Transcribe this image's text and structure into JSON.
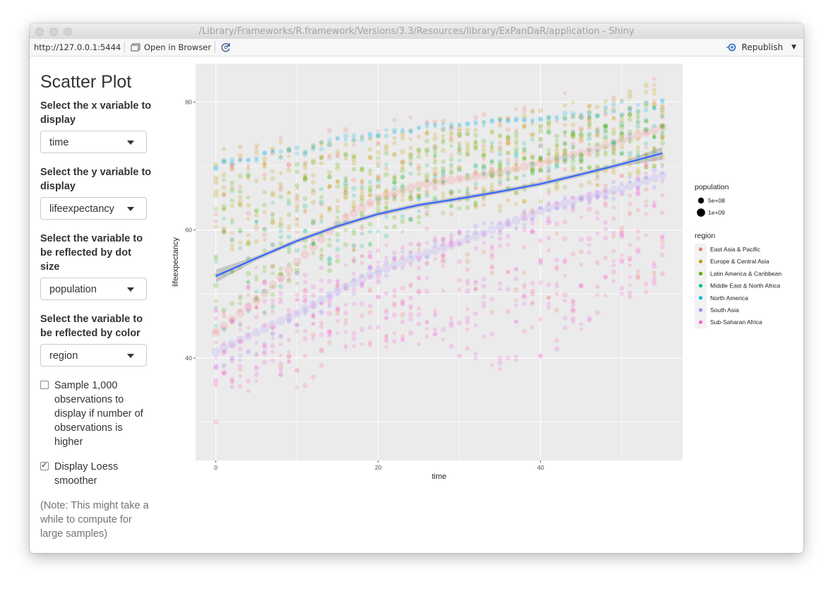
{
  "window": {
    "title": "/Library/Frameworks/R.framework/Versions/3.3/Resources/library/ExPanDaR/application - Shiny"
  },
  "toolbar": {
    "url": "http://127.0.0.1:5444",
    "open_in_browser": "Open in Browser",
    "republish": "Republish"
  },
  "sidebar": {
    "title": "Scatter Plot",
    "x_label": "Select the x variable to display",
    "x_value": "time",
    "y_label": "Select the y variable to display",
    "y_value": "lifeexpectancy",
    "size_label": "Select the variable to be reflected by dot size",
    "size_value": "population",
    "color_label": "Select the variable to be reflected by color",
    "color_value": "region",
    "sample_label": "Sample 1,000 observations to display if number of observations is higher",
    "sample_checked": false,
    "loess_label": "Display Loess smoother",
    "loess_checked": true,
    "note": "(Note: This might take a while to compute for large samples)"
  },
  "icons": {
    "open_in_browser": "browser-window-icon",
    "refresh": "refresh-icon",
    "republish": "publish-icon",
    "dropdown": "chevron-down-icon"
  },
  "chart_data": {
    "type": "scatter",
    "title": "",
    "xlabel": "time",
    "ylabel": "lifeexpectancy",
    "xlim": [
      -2.5,
      57.5
    ],
    "ylim": [
      24,
      86
    ],
    "x_ticks": [
      0,
      20,
      40
    ],
    "y_ticks": [
      40,
      60,
      80
    ],
    "grid": true,
    "panel_color": "#ebebeb",
    "legend_placement": "right",
    "size_legend": {
      "title": "population",
      "entries": [
        "5e+08",
        "1e+09"
      ]
    },
    "color_legend": {
      "title": "region",
      "entries": [
        {
          "name": "East Asia & Pacific",
          "color": "#F8766D"
        },
        {
          "name": "Europe & Central Asia",
          "color": "#C49A00"
        },
        {
          "name": "Latin America & Caribbean",
          "color": "#53B400"
        },
        {
          "name": "Middle East & North Africa",
          "color": "#00C094"
        },
        {
          "name": "North America",
          "color": "#00B6EB"
        },
        {
          "name": "South Asia",
          "color": "#A58AFF"
        },
        {
          "name": "Sub-Saharan Africa",
          "color": "#FB61D7"
        }
      ]
    },
    "loess": {
      "color": "#3366FF",
      "x": [
        0,
        5,
        10,
        15,
        20,
        25,
        30,
        35,
        40,
        45,
        50,
        55
      ],
      "y": [
        52.8,
        55.6,
        58.3,
        60.6,
        62.5,
        63.9,
        64.9,
        66.0,
        67.2,
        68.7,
        70.3,
        72.0
      ]
    },
    "series": [
      {
        "region": "East Asia & Pacific",
        "x": [
          0,
          5,
          10,
          15,
          20,
          25,
          30,
          35,
          40,
          45,
          50,
          55
        ],
        "y_low": [
          30,
          33,
          35,
          38,
          40,
          42,
          44,
          46,
          47,
          48,
          49,
          50
        ],
        "y_high": [
          73,
          74,
          75,
          76,
          77,
          78,
          79,
          80,
          81,
          82,
          83,
          84
        ],
        "large_y": [
          44,
          49,
          55,
          61,
          65,
          67,
          68,
          69,
          70.5,
          72,
          74,
          76
        ]
      },
      {
        "region": "Europe & Central Asia",
        "x": [
          0,
          5,
          10,
          15,
          20,
          25,
          30,
          35,
          40,
          45,
          50,
          55
        ],
        "y_low": [
          55,
          58,
          60,
          63,
          64,
          65,
          64,
          63,
          64,
          66,
          68,
          70
        ],
        "y_high": [
          73,
          73.5,
          74,
          74.5,
          75,
          76,
          77,
          78,
          79,
          80.5,
          82,
          83
        ]
      },
      {
        "region": "Latin America & Caribbean",
        "x": [
          0,
          5,
          10,
          15,
          20,
          25,
          30,
          35,
          40,
          45,
          50,
          55
        ],
        "y_low": [
          45,
          48,
          51,
          54,
          57,
          60,
          63,
          65,
          67,
          68,
          69,
          70
        ],
        "y_high": [
          68,
          69.5,
          71,
          72,
          73,
          74,
          75,
          76,
          77,
          78,
          79,
          80
        ]
      },
      {
        "region": "Middle East & North Africa",
        "x": [
          0,
          5,
          10,
          15,
          20,
          25,
          30,
          35,
          40,
          45,
          50,
          55
        ],
        "y_low": [
          42,
          46,
          50,
          54,
          58,
          62,
          65,
          67,
          69,
          70,
          71,
          72
        ],
        "y_high": [
          62,
          64,
          66,
          68,
          70,
          72,
          73,
          74,
          75,
          76,
          77,
          78
        ]
      },
      {
        "region": "North America",
        "x": [
          0,
          5,
          10,
          15,
          20,
          25,
          30,
          35,
          40,
          45,
          50,
          55
        ],
        "y_low": [
          69.5,
          70.5,
          71.5,
          73,
          74.5,
          75.5,
          76,
          76.5,
          77,
          77.5,
          78,
          79
        ],
        "y_high": [
          71,
          72,
          73,
          74.5,
          75.5,
          76.5,
          77,
          77.5,
          78,
          79,
          80,
          81
        ]
      },
      {
        "region": "South Asia",
        "x": [
          0,
          5,
          10,
          15,
          20,
          25,
          30,
          35,
          40,
          45,
          50,
          55
        ],
        "y_low": [
          36,
          40,
          44,
          48,
          52,
          55,
          57,
          59,
          61,
          63,
          65,
          67
        ],
        "large_y": [
          41,
          44,
          47,
          50.5,
          53.5,
          56,
          58,
          60.5,
          63,
          65,
          66.5,
          68.5
        ]
      },
      {
        "region": "Sub-Saharan Africa",
        "x": [
          0,
          5,
          10,
          15,
          20,
          25,
          30,
          35,
          40,
          45,
          50,
          55
        ],
        "y_low": [
          34,
          36,
          38,
          40,
          42,
          43,
          40,
          38,
          40,
          43,
          47,
          51
        ],
        "y_high": [
          50,
          52,
          54,
          56,
          58,
          59,
          60,
          61,
          63,
          66,
          69,
          72
        ]
      }
    ]
  }
}
